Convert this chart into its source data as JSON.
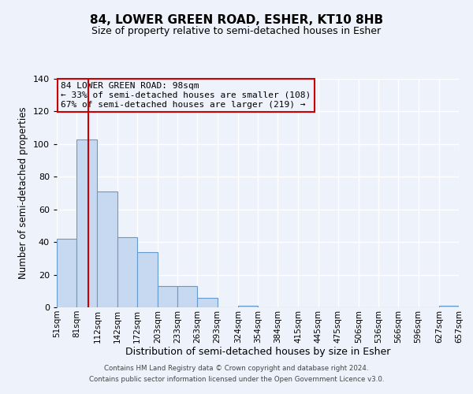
{
  "title": "84, LOWER GREEN ROAD, ESHER, KT10 8HB",
  "subtitle": "Size of property relative to semi-detached houses in Esher",
  "xlabel": "Distribution of semi-detached houses by size in Esher",
  "ylabel": "Number of semi-detached properties",
  "bin_edges": [
    51,
    81,
    112,
    142,
    172,
    203,
    233,
    263,
    293,
    324,
    354,
    384,
    415,
    445,
    475,
    506,
    536,
    566,
    596,
    627,
    657
  ],
  "counts": [
    42,
    103,
    71,
    43,
    34,
    13,
    13,
    6,
    0,
    1,
    0,
    0,
    0,
    0,
    0,
    0,
    0,
    0,
    0,
    1
  ],
  "property_size": 98,
  "property_line_color": "#cc0000",
  "bar_face_color": "#c6d9f0",
  "bar_edge_color": "#6699cc",
  "annotation_box_edge_color": "#cc0000",
  "annotation_title": "84 LOWER GREEN ROAD: 98sqm",
  "annotation_line1": "← 33% of semi-detached houses are smaller (108)",
  "annotation_line2": "67% of semi-detached houses are larger (219) →",
  "ylim": [
    0,
    140
  ],
  "yticks": [
    0,
    20,
    40,
    60,
    80,
    100,
    120,
    140
  ],
  "footer_line1": "Contains HM Land Registry data © Crown copyright and database right 2024.",
  "footer_line2": "Contains public sector information licensed under the Open Government Licence v3.0.",
  "background_color": "#eef2fa",
  "grid_color": "#ffffff",
  "tick_labels": [
    "51sqm",
    "81sqm",
    "112sqm",
    "142sqm",
    "172sqm",
    "203sqm",
    "233sqm",
    "263sqm",
    "293sqm",
    "324sqm",
    "354sqm",
    "384sqm",
    "415sqm",
    "445sqm",
    "475sqm",
    "506sqm",
    "536sqm",
    "566sqm",
    "596sqm",
    "627sqm",
    "657sqm"
  ]
}
